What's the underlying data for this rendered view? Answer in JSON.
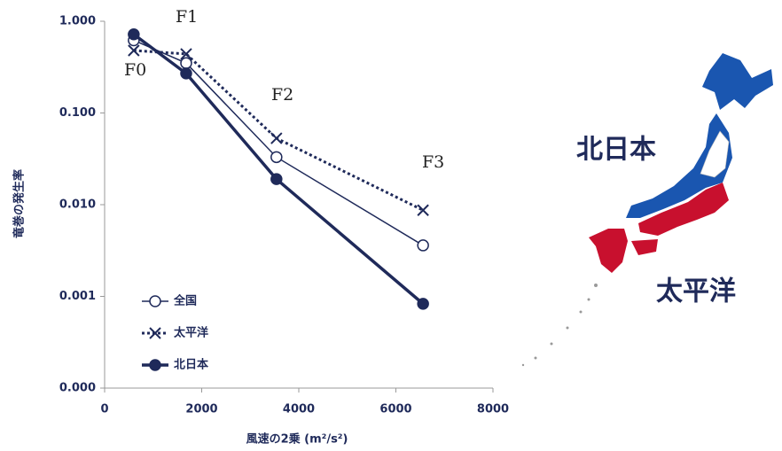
{
  "chart_data": {
    "type": "line",
    "y_label": "竜巻の発生率",
    "x_label": "風速の2乗 (m²/s²)",
    "x": [
      600,
      1680,
      3540,
      6560
    ],
    "xlim": [
      0,
      8000
    ],
    "xticks": [
      0,
      2000,
      4000,
      6000,
      8000
    ],
    "ylim": [
      0.0001,
      1
    ],
    "log_y": true,
    "yticks": [
      {
        "value": 0.0001,
        "label": "0.000"
      },
      0.001,
      {
        "value": 0.01,
        "label": "0.010"
      },
      {
        "value": 0.1,
        "label": "0.100"
      },
      {
        "value": 1,
        "label": "1.000"
      }
    ],
    "annotations": [
      "F0",
      "F1",
      "F2",
      "F3"
    ],
    "series": [
      {
        "name": "全国",
        "color": "#1f2a5a",
        "marker": "open-circle",
        "dashed": false,
        "values": [
          0.62,
          0.35,
          0.033,
          0.0036
        ]
      },
      {
        "name": "太平洋",
        "color": "#1f2a5a",
        "marker": "x",
        "dashed": true,
        "values": [
          0.48,
          0.44,
          0.053,
          0.0087
        ]
      },
      {
        "name": "北日本",
        "color": "#1f2a5a",
        "marker": "filled-circle",
        "dashed": false,
        "values": [
          0.72,
          0.27,
          0.019,
          0.00083
        ]
      }
    ]
  },
  "map": {
    "labels": [
      "北日本",
      "太平洋"
    ],
    "colors": [
      "#1a56b0",
      "#c8102e"
    ]
  }
}
